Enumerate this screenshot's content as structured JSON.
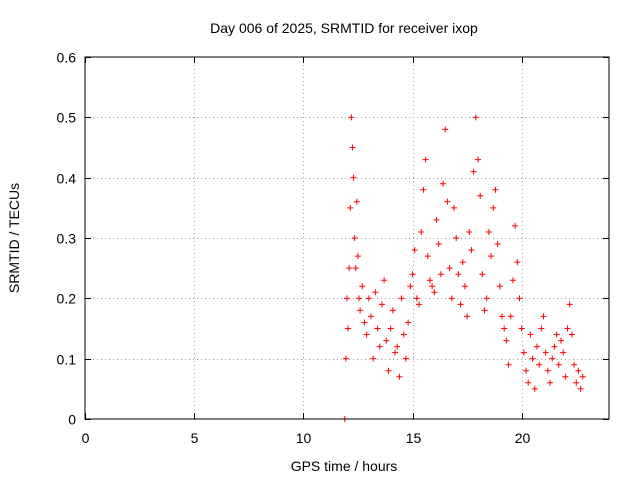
{
  "chart_data": {
    "type": "scatter",
    "title": "Day 006 of 2025, SRMTID for receiver ixop",
    "xlabel": "GPS time / hours",
    "ylabel": "SRMTID / TECUs",
    "xlim": [
      0,
      24
    ],
    "ylim": [
      0,
      0.6
    ],
    "xticks": [
      0,
      5,
      10,
      15,
      20
    ],
    "xtick_labels": [
      "0",
      "5",
      "10",
      "15",
      "20"
    ],
    "yticks": [
      0,
      0.1,
      0.2,
      0.3,
      0.4,
      0.5,
      0.6
    ],
    "ytick_labels": [
      "0",
      "0.1",
      "0.2",
      "0.3",
      "0.4",
      "0.5",
      "0.6"
    ],
    "grid": true,
    "marker": "+",
    "color": "#ff0000",
    "series": [
      {
        "name": "SRMTID",
        "x": [
          11.9,
          11.95,
          12.0,
          12.05,
          12.1,
          12.15,
          12.2,
          12.25,
          12.3,
          12.35,
          12.4,
          12.45,
          12.5,
          12.55,
          12.6,
          12.7,
          12.8,
          12.9,
          13.0,
          13.1,
          13.2,
          13.3,
          13.4,
          13.5,
          13.6,
          13.7,
          13.8,
          13.9,
          14.0,
          14.1,
          14.2,
          14.3,
          14.4,
          14.5,
          14.6,
          14.7,
          14.8,
          14.9,
          15.0,
          15.1,
          15.2,
          15.3,
          15.4,
          15.5,
          15.6,
          15.7,
          15.8,
          15.9,
          16.0,
          16.1,
          16.2,
          16.3,
          16.4,
          16.5,
          16.6,
          16.7,
          16.8,
          16.9,
          17.0,
          17.1,
          17.2,
          17.3,
          17.4,
          17.5,
          17.6,
          17.7,
          17.8,
          17.9,
          18.0,
          18.1,
          18.2,
          18.3,
          18.4,
          18.5,
          18.6,
          18.7,
          18.8,
          18.9,
          19.0,
          19.1,
          19.2,
          19.3,
          19.4,
          19.5,
          19.6,
          19.7,
          19.8,
          19.9,
          20.0,
          20.1,
          20.2,
          20.3,
          20.4,
          20.5,
          20.6,
          20.7,
          20.8,
          20.9,
          21.0,
          21.1,
          21.2,
          21.3,
          21.4,
          21.5,
          21.6,
          21.7,
          21.8,
          21.9,
          22.0,
          22.1,
          22.2,
          22.3,
          22.4,
          22.5,
          22.6,
          22.7,
          22.8
        ],
        "values": [
          0.0,
          0.1,
          0.2,
          0.15,
          0.25,
          0.35,
          0.5,
          0.45,
          0.4,
          0.3,
          0.25,
          0.36,
          0.27,
          0.2,
          0.18,
          0.22,
          0.16,
          0.14,
          0.2,
          0.17,
          0.1,
          0.21,
          0.15,
          0.12,
          0.19,
          0.23,
          0.13,
          0.08,
          0.15,
          0.18,
          0.11,
          0.12,
          0.07,
          0.2,
          0.14,
          0.1,
          0.16,
          0.22,
          0.24,
          0.28,
          0.2,
          0.19,
          0.31,
          0.38,
          0.43,
          0.27,
          0.23,
          0.22,
          0.21,
          0.33,
          0.29,
          0.24,
          0.39,
          0.48,
          0.36,
          0.25,
          0.2,
          0.35,
          0.3,
          0.24,
          0.19,
          0.26,
          0.22,
          0.17,
          0.31,
          0.28,
          0.41,
          0.5,
          0.43,
          0.37,
          0.24,
          0.18,
          0.2,
          0.31,
          0.27,
          0.35,
          0.38,
          0.29,
          0.22,
          0.17,
          0.15,
          0.13,
          0.09,
          0.17,
          0.23,
          0.32,
          0.26,
          0.2,
          0.15,
          0.11,
          0.08,
          0.06,
          0.14,
          0.1,
          0.05,
          0.12,
          0.09,
          0.15,
          0.17,
          0.11,
          0.08,
          0.06,
          0.1,
          0.12,
          0.14,
          0.09,
          0.13,
          0.11,
          0.07,
          0.15,
          0.19,
          0.14,
          0.09,
          0.06,
          0.08,
          0.05,
          0.07
        ]
      }
    ]
  }
}
